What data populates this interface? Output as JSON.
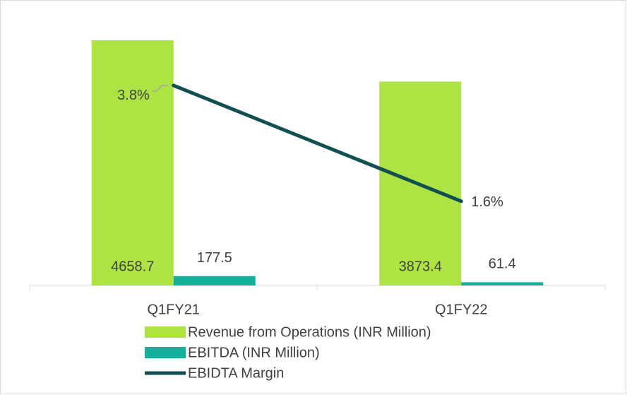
{
  "chart_data": {
    "type": "bar",
    "categories": [
      "Q1FY21",
      "Q1FY22"
    ],
    "series": [
      {
        "name": "Revenue from Operations (INR Million)",
        "color": "#ade443",
        "values": [
          4658.7,
          3873.4
        ]
      },
      {
        "name": "EBITDA (INR Million)",
        "color": "#13b19a",
        "values": [
          177.5,
          61.4
        ]
      },
      {
        "name": "EBIDTA Margin",
        "color": "#124f50",
        "type": "line",
        "axis": "y2",
        "values": [
          3.8,
          1.6
        ],
        "value_labels": [
          "3.8%",
          "1.6%"
        ]
      }
    ],
    "ylim": [
      0,
      5000
    ],
    "y2lim": [
      0,
      5
    ],
    "legend": "bottom"
  }
}
